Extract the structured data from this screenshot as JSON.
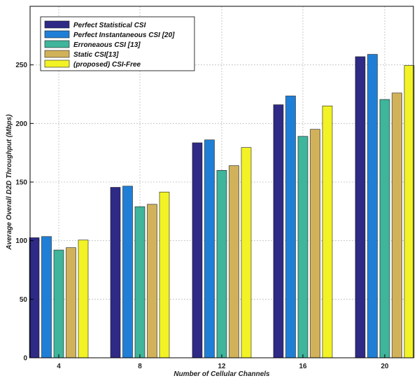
{
  "chart_data": {
    "type": "bar",
    "xlabel": "Number of Cellular Channels",
    "ylabel": "Average Overall D2D Throughput (Mbps)",
    "categories": [
      "4",
      "8",
      "12",
      "16",
      "20"
    ],
    "ylim": [
      0,
      300
    ],
    "yticks": [
      0,
      50,
      100,
      150,
      200,
      250
    ],
    "ytick_labels": [
      "0",
      "50",
      "100",
      "150",
      "200",
      "250"
    ],
    "grid": true,
    "legend_position": "top-left",
    "series": [
      {
        "name": "Perfect Statistical CSI",
        "color": "#2e2a86",
        "values": [
          102.5,
          145.5,
          183.5,
          216,
          257
        ]
      },
      {
        "name": "Perfect Instantaneous CSI [20]",
        "color": "#1f7fd7",
        "values": [
          103.5,
          146.5,
          186,
          223.5,
          259
        ]
      },
      {
        "name": "Erroneaous CSI [13]",
        "color": "#3fb59b",
        "values": [
          92,
          129,
          160,
          189,
          220.5
        ]
      },
      {
        "name": "Static CSI[13]",
        "color": "#d1b25a",
        "values": [
          94,
          131,
          164,
          195,
          226
        ]
      },
      {
        "name": "(proposed) CSI-Free",
        "color": "#f2f226",
        "values": [
          100.5,
          141.5,
          179.5,
          215,
          249.5
        ]
      }
    ]
  }
}
